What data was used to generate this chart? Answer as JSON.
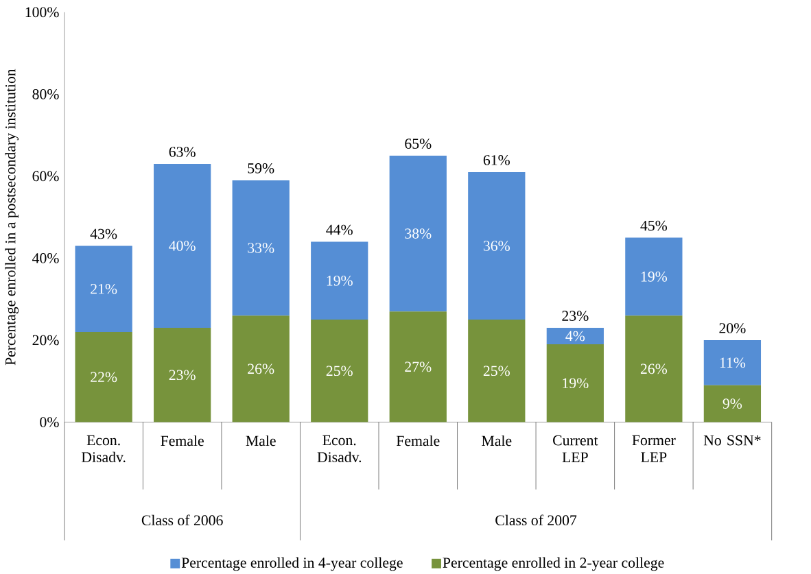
{
  "chart_data": {
    "type": "bar",
    "stacked": true,
    "ylabel": "Percentage enrolled in a postsecondary institution",
    "categories": [
      "Econ. Disadv.",
      "Female",
      "Male",
      "Econ. Disadv.",
      "Female",
      "Male",
      "Current LEP",
      "Former LEP",
      "No SSN*"
    ],
    "series": [
      {
        "name": "Percentage enrolled in 2-year college",
        "color": "#77933c",
        "values": [
          22,
          23,
          26,
          25,
          27,
          25,
          19,
          26,
          9
        ],
        "value_labels": [
          "22%",
          "23%",
          "26%",
          "25%",
          "27%",
          "25%",
          "19%",
          "26%",
          "9%"
        ]
      },
      {
        "name": "Percentage enrolled in 4-year college",
        "color": "#558ed5",
        "values": [
          21,
          40,
          33,
          19,
          38,
          36,
          4,
          19,
          11
        ],
        "value_labels": [
          "21%",
          "40%",
          "33%",
          "19%",
          "38%",
          "36%",
          "4%",
          "19%",
          "11%"
        ]
      }
    ],
    "totals": [
      "43%",
      "63%",
      "59%",
      "44%",
      "65%",
      "61%",
      "23%",
      "45%",
      "20%"
    ],
    "ylim": [
      0,
      100
    ],
    "yticks": [
      {
        "value": 0,
        "label": "0%"
      },
      {
        "value": 20,
        "label": "20%"
      },
      {
        "value": 40,
        "label": "40%"
      },
      {
        "value": 60,
        "label": "60%"
      },
      {
        "value": 80,
        "label": "80%"
      },
      {
        "value": 100,
        "label": "100%"
      }
    ],
    "legend": "bottom",
    "grid": false,
    "annotations": [
      "Class of 2006",
      "Class of 2007"
    ]
  }
}
